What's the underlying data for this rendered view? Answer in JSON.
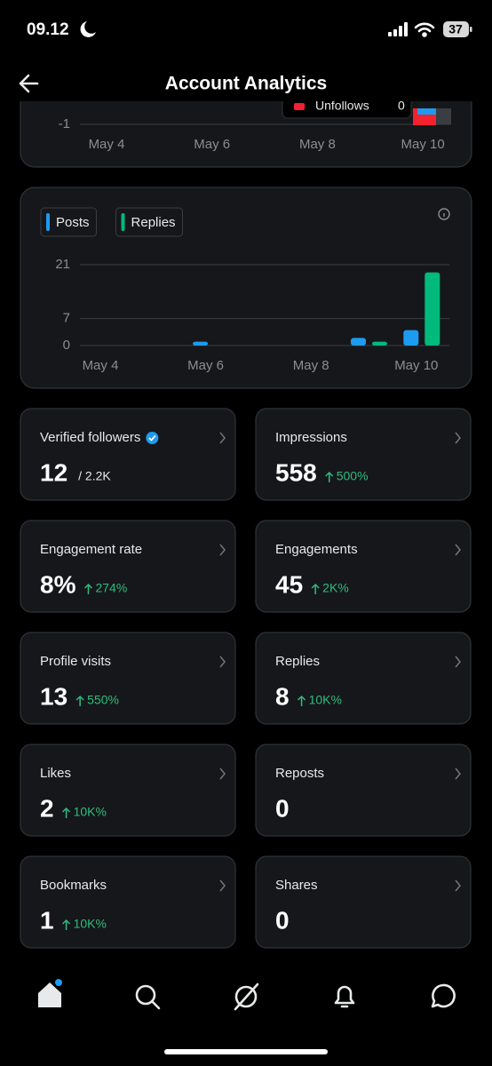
{
  "status_bar": {
    "time": "09.12",
    "battery": "37"
  },
  "header": {
    "title": "Account Analytics"
  },
  "follower_chart": {
    "yticks": [
      -1
    ],
    "categories": [
      "May 4",
      "May 6",
      "May 8",
      "May 10"
    ],
    "legend": {
      "label": "Unfollows",
      "value": 0
    }
  },
  "activity_chart": {
    "type": "bar",
    "categories": [
      "May 4",
      null,
      "May 6",
      null,
      "May 8",
      null,
      "May 10"
    ],
    "series": [
      {
        "name": "Posts",
        "color": "#1d9bf0",
        "values": [
          0,
          0,
          1,
          0,
          0,
          2,
          4
        ]
      },
      {
        "name": "Replies",
        "color": "#00ba7c",
        "values": [
          0,
          0,
          0,
          0,
          0,
          1,
          19
        ]
      }
    ],
    "ylim": [
      0,
      21
    ],
    "yticks": [
      0,
      7,
      21
    ],
    "grid": true
  },
  "metrics": [
    {
      "label": "Verified followers",
      "value": "12",
      "total": "/ 2.2K"
    },
    {
      "label": "Impressions",
      "value": "558",
      "change": "500%"
    },
    {
      "label": "Engagement rate",
      "value": "8%",
      "change": "274%"
    },
    {
      "label": "Engagements",
      "value": "45",
      "change": "2K%"
    },
    {
      "label": "Profile visits",
      "value": "13",
      "change": "550%"
    },
    {
      "label": "Replies",
      "value": "8",
      "change": "10K%"
    },
    {
      "label": "Likes",
      "value": "2",
      "change": "10K%"
    },
    {
      "label": "Reposts",
      "value": "0"
    },
    {
      "label": "Bookmarks",
      "value": "1",
      "change": "10K%"
    },
    {
      "label": "Shares",
      "value": "0"
    }
  ]
}
